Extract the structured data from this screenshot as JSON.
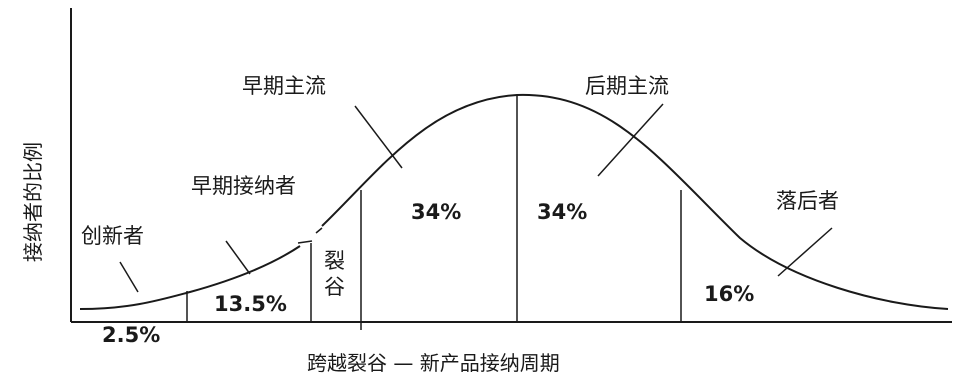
{
  "diagram": {
    "x_axis_label": "跨越裂谷 — 新产品接纳周期",
    "y_axis_label": "接纳者的比例",
    "segments": [
      {
        "id": "innovators",
        "label": "创新者",
        "percent": "2.5%"
      },
      {
        "id": "early-adopters",
        "label": "早期接纳者",
        "percent": "13.5%"
      },
      {
        "id": "chasm",
        "label": "裂谷"
      },
      {
        "id": "early-majority",
        "label": "早期主流",
        "percent": "34%"
      },
      {
        "id": "late-majority",
        "label": "后期主流",
        "percent": "34%"
      },
      {
        "id": "laggards",
        "label": "落后者",
        "percent": "16%"
      }
    ]
  },
  "colors": {
    "stroke": "#1a1a1a",
    "background": "#ffffff"
  }
}
